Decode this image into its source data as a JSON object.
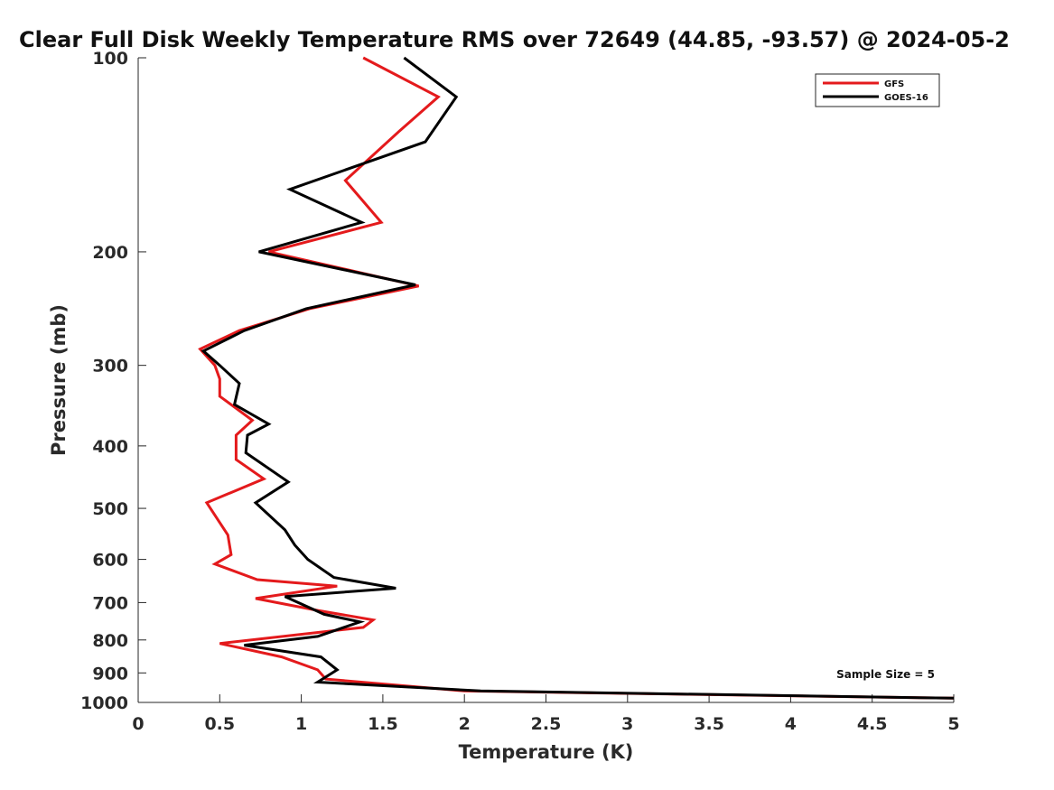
{
  "chart_data": {
    "type": "line",
    "title": "Clear Full Disk Weekly Temperature RMS over 72649 (44.85, -93.57) @ 2024-05-2",
    "xlabel": "Temperature (K)",
    "ylabel": "Pressure (mb)",
    "xlim": [
      0,
      5
    ],
    "ylim": [
      1000,
      100
    ],
    "y_scale": "log",
    "y_reversed": true,
    "x_ticks": [
      0,
      0.5,
      1,
      1.5,
      2,
      2.5,
      3,
      3.5,
      4,
      4.5,
      5
    ],
    "x_tick_labels": [
      "0",
      "0.5",
      "1",
      "1.5",
      "2",
      "2.5",
      "3",
      "3.5",
      "4",
      "4.5",
      "5"
    ],
    "y_ticks": [
      100,
      200,
      300,
      400,
      500,
      600,
      700,
      800,
      900,
      1000
    ],
    "y_tick_labels": [
      "100",
      "200",
      "300",
      "400",
      "500",
      "600",
      "700",
      "800",
      "900",
      "1000"
    ],
    "grid": false,
    "legend_position": "top-right",
    "annotation": "Sample Size = 5",
    "series": [
      {
        "name": "GFS",
        "color": "#e41a1c",
        "points": [
          {
            "x": 1.38,
            "y": 100
          },
          {
            "x": 1.84,
            "y": 115
          },
          {
            "x": 1.6,
            "y": 130
          },
          {
            "x": 1.27,
            "y": 155
          },
          {
            "x": 1.49,
            "y": 180
          },
          {
            "x": 0.8,
            "y": 200
          },
          {
            "x": 1.72,
            "y": 226
          },
          {
            "x": 1.05,
            "y": 245
          },
          {
            "x": 0.62,
            "y": 265
          },
          {
            "x": 0.38,
            "y": 283
          },
          {
            "x": 0.47,
            "y": 300
          },
          {
            "x": 0.5,
            "y": 315
          },
          {
            "x": 0.5,
            "y": 335
          },
          {
            "x": 0.7,
            "y": 365
          },
          {
            "x": 0.6,
            "y": 385
          },
          {
            "x": 0.6,
            "y": 420
          },
          {
            "x": 0.77,
            "y": 450
          },
          {
            "x": 0.42,
            "y": 490
          },
          {
            "x": 0.55,
            "y": 550
          },
          {
            "x": 0.57,
            "y": 590
          },
          {
            "x": 0.47,
            "y": 610
          },
          {
            "x": 0.73,
            "y": 645
          },
          {
            "x": 1.22,
            "y": 660
          },
          {
            "x": 0.72,
            "y": 690
          },
          {
            "x": 1.1,
            "y": 720
          },
          {
            "x": 1.44,
            "y": 745
          },
          {
            "x": 1.38,
            "y": 765
          },
          {
            "x": 0.5,
            "y": 810
          },
          {
            "x": 0.88,
            "y": 850
          },
          {
            "x": 1.1,
            "y": 890
          },
          {
            "x": 1.15,
            "y": 920
          },
          {
            "x": 2.0,
            "y": 960
          },
          {
            "x": 5.0,
            "y": 985
          }
        ]
      },
      {
        "name": "GOES-16",
        "color": "#000000",
        "points": [
          {
            "x": 1.63,
            "y": 100
          },
          {
            "x": 1.95,
            "y": 115
          },
          {
            "x": 1.76,
            "y": 135
          },
          {
            "x": 0.93,
            "y": 160
          },
          {
            "x": 1.37,
            "y": 180
          },
          {
            "x": 0.74,
            "y": 200
          },
          {
            "x": 1.7,
            "y": 225
          },
          {
            "x": 1.03,
            "y": 245
          },
          {
            "x": 0.65,
            "y": 265
          },
          {
            "x": 0.4,
            "y": 285
          },
          {
            "x": 0.5,
            "y": 300
          },
          {
            "x": 0.62,
            "y": 320
          },
          {
            "x": 0.59,
            "y": 345
          },
          {
            "x": 0.8,
            "y": 370
          },
          {
            "x": 0.67,
            "y": 385
          },
          {
            "x": 0.66,
            "y": 410
          },
          {
            "x": 0.92,
            "y": 455
          },
          {
            "x": 0.72,
            "y": 490
          },
          {
            "x": 0.9,
            "y": 540
          },
          {
            "x": 0.96,
            "y": 570
          },
          {
            "x": 1.04,
            "y": 600
          },
          {
            "x": 1.2,
            "y": 640
          },
          {
            "x": 1.58,
            "y": 665
          },
          {
            "x": 0.9,
            "y": 685
          },
          {
            "x": 1.14,
            "y": 730
          },
          {
            "x": 1.36,
            "y": 750
          },
          {
            "x": 1.1,
            "y": 790
          },
          {
            "x": 0.65,
            "y": 815
          },
          {
            "x": 1.12,
            "y": 850
          },
          {
            "x": 1.22,
            "y": 890
          },
          {
            "x": 1.1,
            "y": 930
          },
          {
            "x": 2.1,
            "y": 960
          },
          {
            "x": 5.0,
            "y": 985
          }
        ]
      }
    ]
  }
}
